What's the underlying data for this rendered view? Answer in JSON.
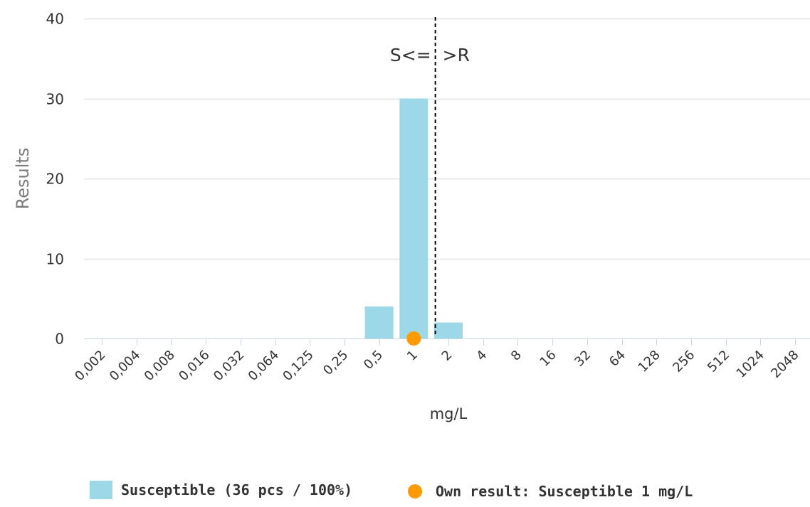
{
  "chart_data": {
    "type": "bar",
    "categories": [
      "0,002",
      "0,004",
      "0,008",
      "0,016",
      "0,032",
      "0,064",
      "0,125",
      "0,25",
      "0,5",
      "1",
      "2",
      "4",
      "8",
      "16",
      "32",
      "64",
      "128",
      "256",
      "512",
      "1024",
      "2048"
    ],
    "series": [
      {
        "name": "Susceptible (36 pcs / 100%)",
        "values": [
          0,
          0,
          0,
          0,
          0,
          0,
          0,
          0,
          4,
          30,
          2,
          0,
          0,
          0,
          0,
          0,
          0,
          0,
          0,
          0,
          0
        ],
        "color": "#9cd8e8"
      }
    ],
    "own_result": {
      "name": "Own result: Susceptible 1 mg/L",
      "category": "1",
      "value": 0,
      "color": "#ff9a00"
    },
    "breakpoint": {
      "between": [
        "1",
        "2"
      ],
      "label_left": "S<=",
      "label_right": ">R",
      "style": "dashed"
    },
    "xlabel": "mg/L",
    "ylabel": "Results",
    "ylim": [
      0,
      40
    ],
    "yticks": [
      0,
      10,
      20,
      30,
      40
    ],
    "grid": true,
    "legend_position": "bottom"
  }
}
